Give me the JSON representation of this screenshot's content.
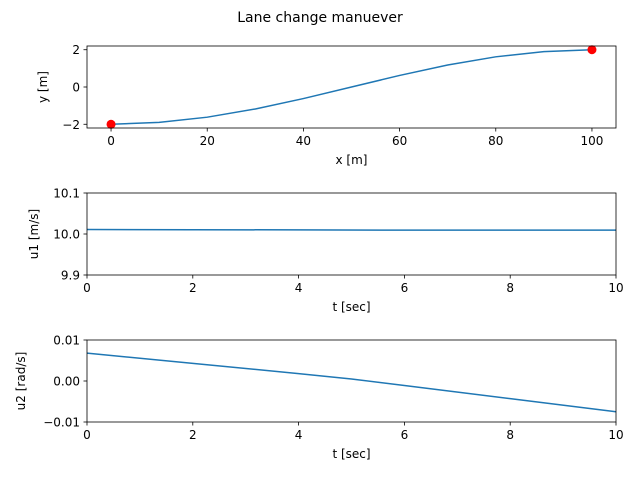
{
  "figure": {
    "title": "Lane change manuever"
  },
  "chart_data": [
    {
      "type": "line",
      "xlabel": "x [m]",
      "ylabel": "y [m]",
      "xlim": [
        -5,
        105
      ],
      "ylim": [
        -2.2,
        2.2
      ],
      "xticks": [
        0,
        20,
        40,
        60,
        80,
        100
      ],
      "yticks": [
        -2,
        0,
        2
      ],
      "grid": false,
      "line_color": "#1f77b4",
      "series": [
        {
          "x": [
            0,
            10,
            20,
            30,
            40,
            50,
            60,
            70,
            80,
            90,
            100
          ],
          "y": [
            -2.0,
            -1.9,
            -1.62,
            -1.18,
            -0.62,
            0.0,
            0.62,
            1.18,
            1.62,
            1.9,
            2.0
          ]
        }
      ],
      "markers": {
        "color": "#ff0000",
        "points": [
          {
            "x": 0,
            "y": -2
          },
          {
            "x": 100,
            "y": 2
          }
        ]
      }
    },
    {
      "type": "line",
      "xlabel": "t [sec]",
      "ylabel": "u1 [m/s]",
      "xlim": [
        0,
        10
      ],
      "ylim": [
        9.9,
        10.1
      ],
      "xticks": [
        0,
        2,
        4,
        6,
        8,
        10
      ],
      "yticks": [
        9.9,
        10.0,
        10.1
      ],
      "ytick_labels": [
        "9.9",
        "10.0",
        "10.1"
      ],
      "grid": false,
      "line_color": "#1f77b4",
      "series": [
        {
          "x": [
            0,
            2,
            4,
            6,
            8,
            10
          ],
          "y": [
            10.011,
            10.0105,
            10.01,
            10.0095,
            10.0095,
            10.0095
          ]
        }
      ]
    },
    {
      "type": "line",
      "xlabel": "t [sec]",
      "ylabel": "u2 [rad/s]",
      "xlim": [
        0,
        10
      ],
      "ylim": [
        -0.01,
        0.01
      ],
      "xticks": [
        0,
        2,
        4,
        6,
        8,
        10
      ],
      "yticks": [
        -0.01,
        0.0,
        0.01
      ],
      "ytick_labels": [
        "−0.01",
        "0.00",
        "0.01"
      ],
      "grid": false,
      "line_color": "#1f77b4",
      "series": [
        {
          "x": [
            0,
            2,
            4,
            5,
            6,
            8,
            10
          ],
          "y": [
            0.0068,
            0.0043,
            0.0018,
            0.0005,
            -0.0011,
            -0.0043,
            -0.0075
          ]
        }
      ]
    }
  ]
}
